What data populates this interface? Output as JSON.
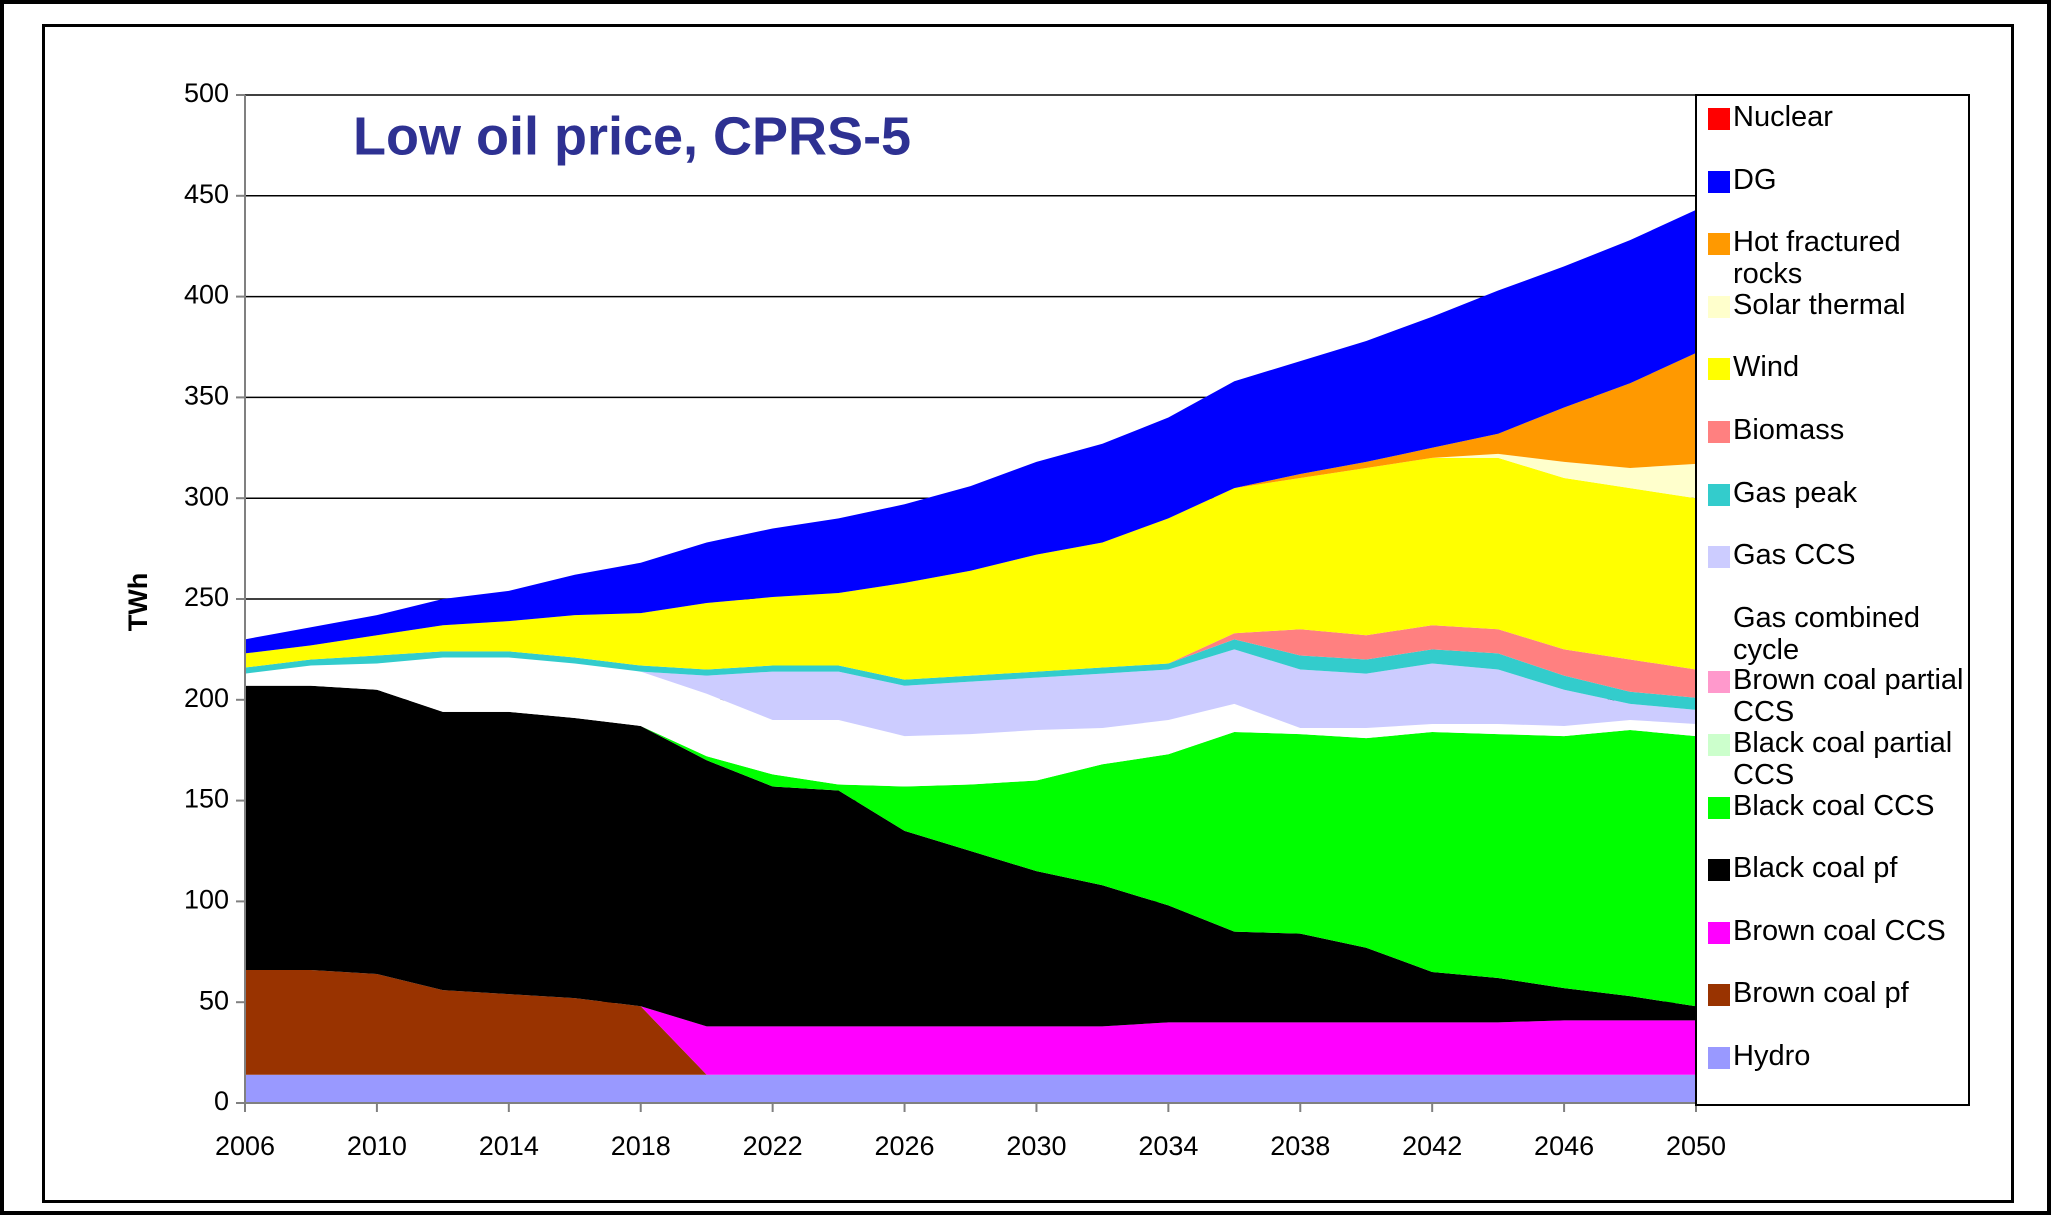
{
  "chart_data": {
    "type": "stacked_area",
    "title": "Low oil price, CPRS-5",
    "y_label": "TWh",
    "x": [
      2006,
      2008,
      2010,
      2012,
      2014,
      2016,
      2018,
      2020,
      2022,
      2024,
      2026,
      2028,
      2030,
      2032,
      2034,
      2036,
      2038,
      2040,
      2042,
      2044,
      2046,
      2048,
      2050
    ],
    "xlim": [
      2006,
      2050
    ],
    "xticks": [
      2006,
      2010,
      2014,
      2018,
      2022,
      2026,
      2030,
      2034,
      2038,
      2042,
      2046,
      2050
    ],
    "ylim": [
      0,
      500
    ],
    "yticks": [
      0,
      50,
      100,
      150,
      200,
      250,
      300,
      350,
      400,
      450,
      500
    ],
    "grid": true,
    "legend": "right",
    "series": [
      {
        "name": "Hydro",
        "color": "#9999ff",
        "values": [
          14,
          14,
          14,
          14,
          14,
          14,
          14,
          14,
          14,
          14,
          14,
          14,
          14,
          14,
          14,
          14,
          14,
          14,
          14,
          14,
          14,
          14,
          14
        ]
      },
      {
        "name": "Brown coal pf",
        "color": "#993300",
        "values": [
          52,
          52,
          50,
          42,
          40,
          38,
          34,
          0,
          0,
          0,
          0,
          0,
          0,
          0,
          0,
          0,
          0,
          0,
          0,
          0,
          0,
          0,
          0
        ]
      },
      {
        "name": "Brown coal CCS",
        "color": "#ff00ff",
        "values": [
          0,
          0,
          0,
          0,
          0,
          0,
          0,
          24,
          24,
          24,
          24,
          24,
          24,
          24,
          26,
          26,
          26,
          26,
          26,
          26,
          27,
          27,
          27
        ]
      },
      {
        "name": "Black coal pf",
        "color": "#000000",
        "values": [
          141,
          141,
          141,
          138,
          140,
          139,
          139,
          132,
          119,
          117,
          97,
          87,
          77,
          70,
          58,
          45,
          44,
          37,
          25,
          22,
          16,
          12,
          7
        ]
      },
      {
        "name": "Black coal CCS",
        "color": "#00ff00",
        "values": [
          0,
          0,
          0,
          0,
          0,
          0,
          0,
          2,
          6,
          3,
          22,
          33,
          45,
          60,
          75,
          99,
          99,
          104,
          119,
          121,
          125,
          132,
          134
        ]
      },
      {
        "name": "Black coal partial CCS",
        "color": "#ccffcc",
        "values": [
          0,
          0,
          0,
          0,
          0,
          0,
          0,
          0,
          0,
          0,
          0,
          0,
          0,
          0,
          0,
          0,
          0,
          0,
          0,
          0,
          0,
          0,
          0
        ]
      },
      {
        "name": "Brown coal partial CCS",
        "color": "#ff99cc",
        "values": [
          0,
          0,
          0,
          0,
          0,
          0,
          0,
          0,
          0,
          0,
          0,
          0,
          0,
          0,
          0,
          0,
          0,
          0,
          0,
          0,
          0,
          0,
          0
        ]
      },
      {
        "name": "Gas combined cycle",
        "color": "#ffffff",
        "values": [
          6,
          10,
          13,
          27,
          27,
          27,
          27,
          31,
          27,
          32,
          25,
          25,
          25,
          18,
          17,
          14,
          3,
          5,
          4,
          5,
          5,
          5,
          6
        ]
      },
      {
        "name": "Gas CCS",
        "color": "#ccccff",
        "values": [
          0,
          0,
          0,
          0,
          0,
          0,
          0,
          9,
          24,
          24,
          25,
          26,
          26,
          27,
          25,
          27,
          29,
          27,
          30,
          27,
          18,
          8,
          7
        ]
      },
      {
        "name": "Gas peak",
        "color": "#33cccc",
        "values": [
          3,
          3,
          4,
          3,
          3,
          3,
          3,
          3,
          3,
          3,
          3,
          3,
          3,
          3,
          3,
          5,
          7,
          7,
          7,
          8,
          7,
          6,
          6
        ]
      },
      {
        "name": "Biomass",
        "color": "#ff8080",
        "values": [
          0,
          0,
          0,
          0,
          0,
          0,
          0,
          0,
          0,
          0,
          0,
          0,
          0,
          0,
          0,
          3,
          13,
          12,
          12,
          12,
          13,
          16,
          14
        ]
      },
      {
        "name": "Wind",
        "color": "#ffff00",
        "values": [
          7,
          7,
          10,
          13,
          15,
          21,
          26,
          33,
          34,
          36,
          48,
          52,
          58,
          62,
          72,
          72,
          75,
          83,
          83,
          85,
          85,
          85,
          85
        ]
      },
      {
        "name": "Solar thermal",
        "color": "#ffffcc",
        "values": [
          0,
          0,
          0,
          0,
          0,
          0,
          0,
          0,
          0,
          0,
          0,
          0,
          0,
          0,
          0,
          0,
          0,
          0,
          0,
          2,
          8,
          10,
          17
        ]
      },
      {
        "name": "Hot fractured rocks",
        "color": "#ff9900",
        "values": [
          0,
          0,
          0,
          0,
          0,
          0,
          0,
          0,
          0,
          0,
          0,
          0,
          0,
          0,
          0,
          0,
          2,
          3,
          5,
          10,
          27,
          42,
          55
        ]
      },
      {
        "name": "DG",
        "color": "#0000ff",
        "values": [
          7,
          9,
          10,
          13,
          15,
          20,
          25,
          30,
          34,
          37,
          39,
          42,
          46,
          49,
          50,
          53,
          56,
          60,
          65,
          71,
          70,
          71,
          71
        ]
      },
      {
        "name": "Nuclear",
        "color": "#ff0000",
        "values": [
          0,
          0,
          0,
          0,
          0,
          0,
          0,
          0,
          0,
          0,
          0,
          0,
          0,
          0,
          0,
          0,
          0,
          0,
          0,
          0,
          0,
          0,
          0
        ]
      }
    ]
  }
}
